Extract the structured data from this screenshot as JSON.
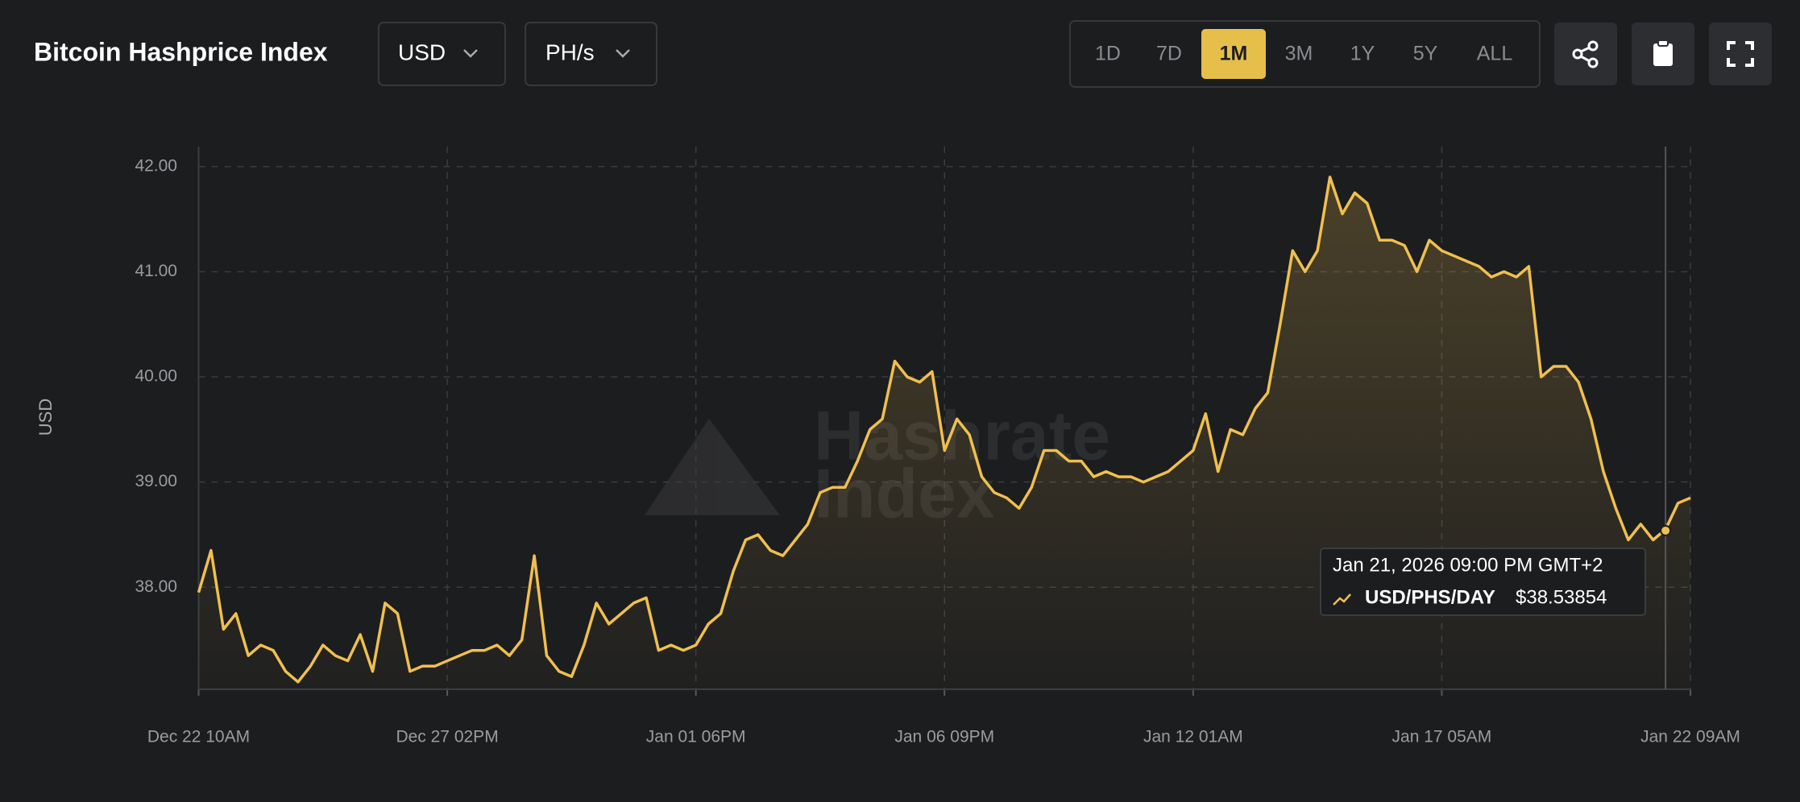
{
  "header": {
    "title": "Bitcoin Hashprice Index",
    "currency": "USD",
    "unit": "PH/s",
    "ranges": [
      "1D",
      "7D",
      "1M",
      "3M",
      "1Y",
      "5Y",
      "ALL"
    ],
    "active_range": "1M"
  },
  "chart_data": {
    "type": "line",
    "y_label": "USD",
    "watermark": [
      "Hashrate",
      "Index"
    ],
    "categories": [
      "Dec 22 10AM",
      null,
      null,
      null,
      null,
      null,
      null,
      null,
      null,
      null,
      null,
      null,
      null,
      null,
      null,
      null,
      null,
      null,
      null,
      null,
      "Dec 27 02PM",
      null,
      null,
      null,
      null,
      null,
      null,
      null,
      null,
      null,
      null,
      null,
      null,
      null,
      null,
      null,
      null,
      null,
      null,
      null,
      "Jan 01 06PM",
      null,
      null,
      null,
      null,
      null,
      null,
      null,
      null,
      null,
      null,
      null,
      null,
      null,
      null,
      null,
      null,
      null,
      null,
      null,
      "Jan 06 09PM",
      null,
      null,
      null,
      null,
      null,
      null,
      null,
      null,
      null,
      null,
      null,
      null,
      null,
      null,
      null,
      null,
      null,
      null,
      null,
      "Jan 12 01AM",
      null,
      null,
      null,
      null,
      null,
      null,
      null,
      null,
      null,
      null,
      null,
      null,
      null,
      null,
      null,
      null,
      null,
      null,
      null,
      "Jan 17 05AM",
      null,
      null,
      null,
      null,
      null,
      null,
      null,
      null,
      null,
      null,
      null,
      null,
      null,
      null,
      null,
      null,
      null,
      null,
      null,
      "Jan 22 09AM"
    ],
    "series": [
      {
        "name": "USD/PHS/DAY",
        "color": "#f0c04e",
        "values": [
          37.95,
          38.35,
          37.6,
          37.75,
          37.35,
          37.45,
          37.4,
          37.2,
          37.1,
          37.25,
          37.45,
          37.35,
          37.3,
          37.55,
          37.2,
          37.85,
          37.75,
          37.2,
          37.25,
          37.25,
          37.3,
          37.35,
          37.4,
          37.4,
          37.45,
          37.35,
          37.5,
          38.3,
          37.35,
          37.2,
          37.15,
          37.45,
          37.85,
          37.65,
          37.75,
          37.85,
          37.9,
          37.4,
          37.45,
          37.4,
          37.45,
          37.65,
          37.75,
          38.15,
          38.45,
          38.5,
          38.35,
          38.3,
          38.45,
          38.6,
          38.9,
          38.95,
          38.95,
          39.2,
          39.5,
          39.6,
          40.15,
          40.0,
          39.95,
          40.05,
          39.3,
          39.6,
          39.45,
          39.05,
          38.9,
          38.85,
          38.75,
          38.95,
          39.3,
          39.3,
          39.2,
          39.2,
          39.05,
          39.1,
          39.05,
          39.05,
          39.0,
          39.05,
          39.1,
          39.2,
          39.3,
          39.65,
          39.1,
          39.5,
          39.45,
          39.7,
          39.85,
          40.5,
          41.2,
          41.0,
          41.2,
          41.9,
          41.55,
          41.75,
          41.65,
          41.3,
          41.3,
          41.25,
          41.0,
          41.3,
          41.2,
          41.15,
          41.1,
          41.05,
          40.95,
          41.0,
          40.95,
          41.05,
          40.0,
          40.1,
          40.1,
          39.95,
          39.6,
          39.1,
          38.75,
          38.45,
          38.6,
          38.45,
          38.55,
          38.8,
          38.85
        ]
      }
    ],
    "ylim": [
      37.03,
      42.19
    ],
    "yticks": [
      {
        "value": 38,
        "label": "38.00"
      },
      {
        "value": 39,
        "label": "39.00"
      },
      {
        "value": 40,
        "label": "40.00"
      },
      {
        "value": 41,
        "label": "41.00"
      },
      {
        "value": 42,
        "label": "42.00"
      }
    ],
    "grid": true,
    "tooltip": {
      "date": "Jan 21, 2026 09:00 PM GMT+2",
      "value": 38.53854,
      "value_label": "$38.53854"
    }
  }
}
